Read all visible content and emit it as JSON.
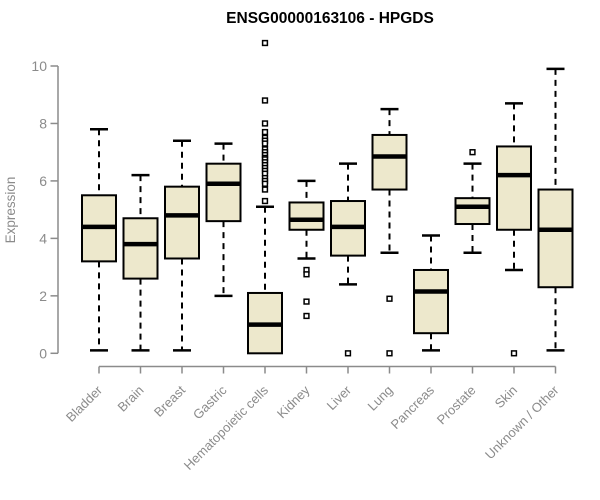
{
  "title": "ENSG00000163106 - HPGDS",
  "chart_data": {
    "type": "boxplot",
    "title": "ENSG00000163106 - HPGDS",
    "ylabel": "Expression",
    "xlabel": "",
    "ylim": [
      0,
      10
    ],
    "yticks": [
      0,
      2,
      4,
      6,
      8,
      10
    ],
    "grid": false,
    "legend": "none",
    "box_fill": "#ede8cc",
    "box_stroke": "#000000",
    "axis_color": "#8b8b8b",
    "categories": [
      "Bladder",
      "Brain",
      "Breast",
      "Gastric",
      "Hematopoietic cells",
      "Kidney",
      "Liver",
      "Lung",
      "Pancreas",
      "Prostate",
      "Skin",
      "Unknown / Other"
    ],
    "series": [
      {
        "category": "Bladder",
        "whisker_low": 0.1,
        "q1": 3.2,
        "median": 4.4,
        "q3": 5.5,
        "whisker_high": 7.8,
        "outliers": []
      },
      {
        "category": "Brain",
        "whisker_low": 0.1,
        "q1": 2.6,
        "median": 3.8,
        "q3": 4.7,
        "whisker_high": 6.2,
        "outliers": []
      },
      {
        "category": "Breast",
        "whisker_low": 0.1,
        "q1": 3.3,
        "median": 4.8,
        "q3": 5.8,
        "whisker_high": 7.4,
        "outliers": []
      },
      {
        "category": "Gastric",
        "whisker_low": 2.0,
        "q1": 4.6,
        "median": 5.9,
        "q3": 6.6,
        "whisker_high": 7.3,
        "outliers": []
      },
      {
        "category": "Hematopoietic cells",
        "whisker_low": 0.0,
        "q1": 0.0,
        "median": 1.0,
        "q3": 2.1,
        "whisker_high": 5.1,
        "outliers": [
          10.8,
          8.8,
          8.0,
          7.7,
          7.5,
          7.4,
          7.3,
          7.1,
          7.0,
          6.9,
          6.8,
          6.75,
          6.65,
          6.55,
          6.45,
          6.35,
          6.25,
          6.1,
          6.0,
          5.9,
          5.7,
          5.3
        ]
      },
      {
        "category": "Kidney",
        "whisker_low": 3.3,
        "q1": 4.3,
        "median": 4.65,
        "q3": 5.25,
        "whisker_high": 6.0,
        "outliers": [
          2.9,
          2.75,
          1.8,
          1.3
        ]
      },
      {
        "category": "Liver",
        "whisker_low": 2.4,
        "q1": 3.4,
        "median": 4.4,
        "q3": 5.3,
        "whisker_high": 6.6,
        "outliers": [
          0.0
        ]
      },
      {
        "category": "Lung",
        "whisker_low": 3.5,
        "q1": 5.7,
        "median": 6.85,
        "q3": 7.6,
        "whisker_high": 8.5,
        "outliers": [
          1.9,
          0.0
        ]
      },
      {
        "category": "Pancreas",
        "whisker_low": 0.1,
        "q1": 0.7,
        "median": 2.15,
        "q3": 2.9,
        "whisker_high": 4.1,
        "outliers": []
      },
      {
        "category": "Prostate",
        "whisker_low": 3.5,
        "q1": 4.5,
        "median": 5.1,
        "q3": 5.4,
        "whisker_high": 6.6,
        "outliers": [
          7.0
        ]
      },
      {
        "category": "Skin",
        "whisker_low": 2.9,
        "q1": 4.3,
        "median": 6.2,
        "q3": 7.2,
        "whisker_high": 8.7,
        "outliers": [
          0.0
        ]
      },
      {
        "category": "Unknown / Other",
        "whisker_low": 0.1,
        "q1": 2.3,
        "median": 4.3,
        "q3": 5.7,
        "whisker_high": 9.9,
        "outliers": []
      }
    ]
  }
}
